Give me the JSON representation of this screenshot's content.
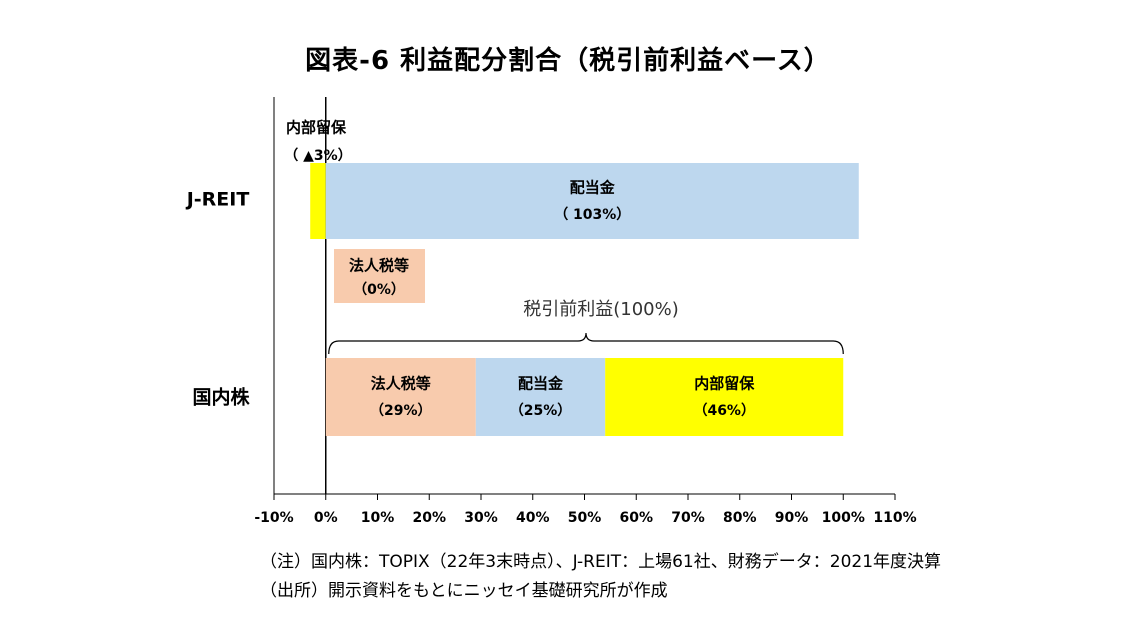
{
  "title": "図表-6 利益配分割合（税引前利益ベース）",
  "notes": [
    "（注）国内株：TOPIX（22年3末時点）、J-REIT：上場61社、財務データ：2021年度決算",
    "（出所）開示資料をもとにニッセイ基礎研究所が作成"
  ],
  "chart_data": {
    "type": "bar",
    "orientation": "horizontal",
    "stacked": true,
    "unit": "%",
    "categories": [
      "J-REIT",
      "国内株"
    ],
    "series": [
      {
        "category": "J-REIT",
        "segments": [
          {
            "label": "内部留保",
            "value_label": "（ ▲3%）",
            "value": -3,
            "color": "#ffff00"
          },
          {
            "label": "配当金",
            "value_label": "（ 103%）",
            "value": 103,
            "color": "#bdd7ee"
          },
          {
            "label": "法人税等",
            "value_label": "（0%）",
            "value": 0,
            "color": "#f8cbad"
          }
        ]
      },
      {
        "category": "国内株",
        "segments": [
          {
            "label": "法人税等",
            "value_label": "（29%）",
            "value": 29,
            "color": "#f8cbad"
          },
          {
            "label": "配当金",
            "value_label": "（25%）",
            "value": 25,
            "color": "#bdd7ee"
          },
          {
            "label": "内部留保",
            "value_label": "（46%）",
            "value": 46,
            "color": "#ffff00"
          }
        ]
      }
    ],
    "brace_annotation": {
      "label": "税引前利益(100%)",
      "from": 0,
      "to": 100
    },
    "xlim": [
      -10,
      110
    ],
    "xticks": [
      -10,
      0,
      10,
      20,
      30,
      40,
      50,
      60,
      70,
      80,
      90,
      100,
      110
    ],
    "tick_labels": [
      "-10%",
      "0%",
      "10%",
      "20%",
      "30%",
      "40%",
      "50%",
      "60%",
      "70%",
      "80%",
      "90%",
      "100%",
      "110%"
    ],
    "grid": false
  }
}
